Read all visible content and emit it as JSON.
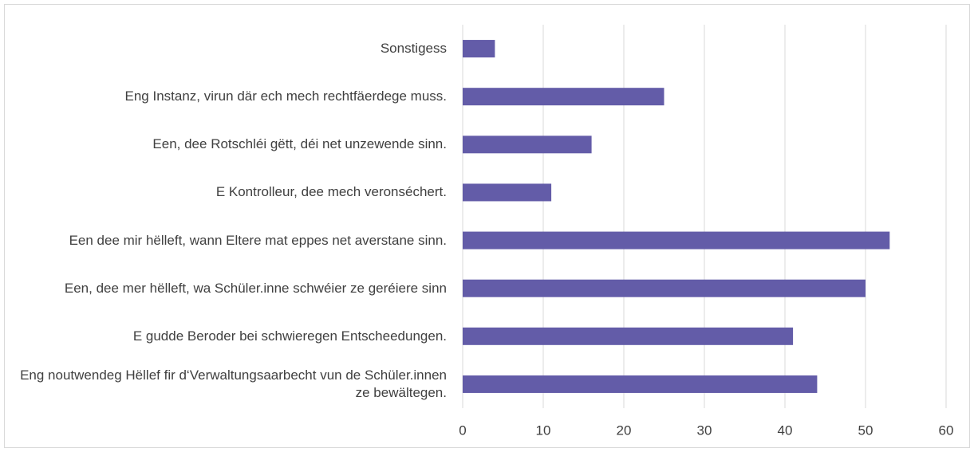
{
  "chart_data": {
    "type": "bar",
    "orientation": "horizontal",
    "categories": [
      "Sonstigess",
      "Eng Instanz, virun där ech mech rechtfäerdege muss.",
      "Een, dee Rotschléi gëtt, déi net unzewende sinn.",
      "E Kontrolleur, dee mech veronséchert.",
      "Een dee mir hëlleft, wann Eltere mat eppes net averstane sinn.",
      "Een, dee mer hëlleft, wa Schüler.inne schwéier ze geréiere sinn",
      "E gudde Beroder bei schwieregen Entscheedungen.",
      "Eng noutwendeg Hëllef fir d‘Verwaltungsaarbecht vun de Schüler.innen ze bewältegen."
    ],
    "values": [
      4,
      25,
      16,
      11,
      53,
      50,
      41,
      44
    ],
    "color": "#635ca8",
    "xlim": [
      0,
      60
    ],
    "xticks": [
      0,
      10,
      20,
      30,
      40,
      50,
      60
    ],
    "grid": true
  }
}
